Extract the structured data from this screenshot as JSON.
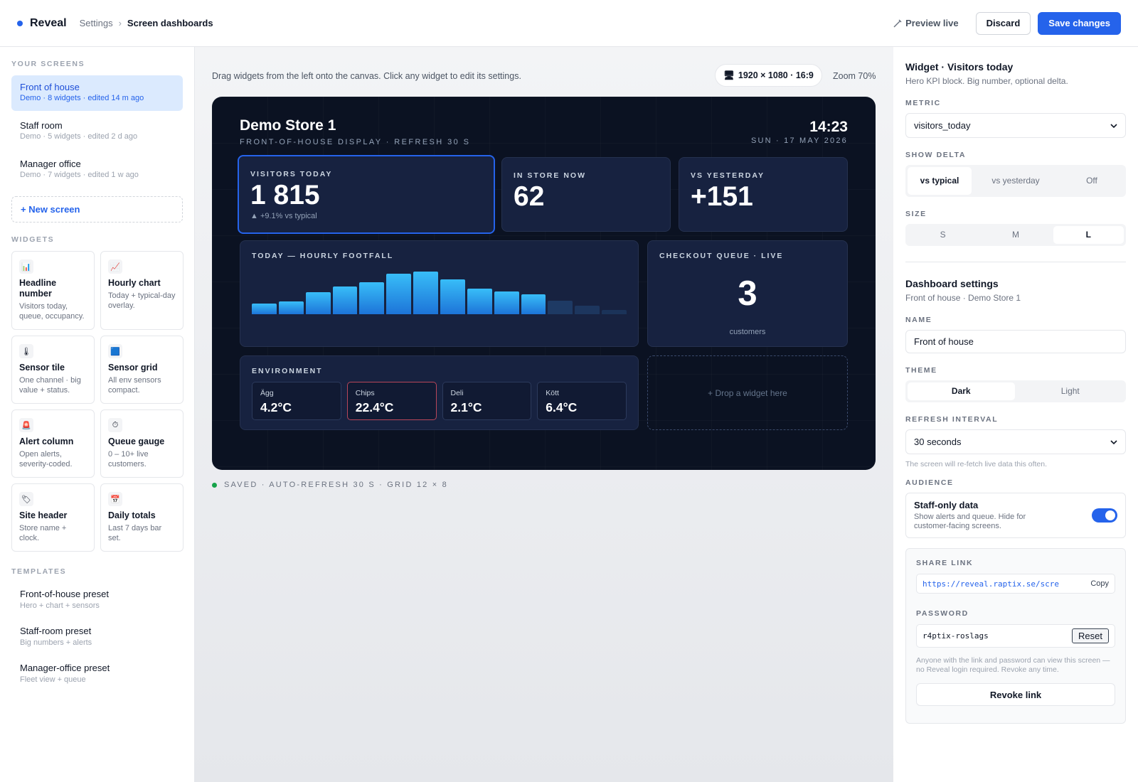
{
  "topbar": {
    "brand": "Reveal",
    "breadcrumb_parent": "Settings",
    "breadcrumb_sep": "›",
    "breadcrumb_current": "Screen dashboards",
    "preview_label": "Preview live",
    "discard_label": "Discard",
    "save_label": "Save changes"
  },
  "sidebar": {
    "screens_heading": "YOUR SCREENS",
    "screens": [
      {
        "name": "Front of house",
        "meta": "Demo · 8 widgets · edited 14 m ago",
        "active": true
      },
      {
        "name": "Staff room",
        "meta": "Demo · 5 widgets · edited 2 d ago",
        "active": false
      },
      {
        "name": "Manager office",
        "meta": "Demo · 7 widgets · edited 1 w ago",
        "active": false
      }
    ],
    "new_screen_label": "+ New screen",
    "widgets_heading": "WIDGETS",
    "widgets": [
      {
        "icon": "bar-chart-icon",
        "glyph": "📊",
        "name": "Headline number",
        "desc": "Visitors today, queue, occupancy."
      },
      {
        "icon": "line-chart-icon",
        "glyph": "📈",
        "name": "Hourly chart",
        "desc": "Today + typical-day overlay."
      },
      {
        "icon": "thermometer-icon",
        "glyph": "🌡",
        "name": "Sensor tile",
        "desc": "One channel · big value + status."
      },
      {
        "icon": "grid-icon",
        "glyph": "🟦",
        "name": "Sensor grid",
        "desc": "All env sensors compact."
      },
      {
        "icon": "siren-icon",
        "glyph": "🚨",
        "name": "Alert column",
        "desc": "Open alerts, severity-coded."
      },
      {
        "icon": "timer-icon",
        "glyph": "⏱",
        "name": "Queue gauge",
        "desc": "0 – 10+ live customers."
      },
      {
        "icon": "label-icon",
        "glyph": "🏷",
        "name": "Site header",
        "desc": "Store name + clock."
      },
      {
        "icon": "calendar-icon",
        "glyph": "📅",
        "name": "Daily totals",
        "desc": "Last 7 days bar set."
      }
    ],
    "templates_heading": "TEMPLATES",
    "templates": [
      {
        "name": "Front-of-house preset",
        "desc": "Hero + chart + sensors"
      },
      {
        "name": "Staff-room preset",
        "desc": "Big numbers + alerts"
      },
      {
        "name": "Manager-office preset",
        "desc": "Fleet view + queue"
      }
    ]
  },
  "canvas": {
    "hint": "Drag widgets from the left onto the canvas. Click any widget to edit its settings.",
    "resolution": "1920 × 1080 · 16:9",
    "zoom": "Zoom 70%",
    "status": "SAVED · AUTO-REFRESH 30 S · GRID 12 × 8",
    "drop_hint": "+ Drop a widget here"
  },
  "screen": {
    "title": "Demo Store 1",
    "subtitle": "FRONT-OF-HOUSE DISPLAY · REFRESH 30 S",
    "time": "14:23",
    "date": "SUN · 17 MAY 2026",
    "kpis": [
      {
        "label": "VISITORS TODAY",
        "value": "1 815",
        "delta": "▲ +9.1% vs typical"
      },
      {
        "label": "IN STORE NOW",
        "value": "62",
        "delta": ""
      },
      {
        "label": "VS YESTERDAY",
        "value": "+151",
        "delta": ""
      }
    ],
    "chart_label": "TODAY — HOURLY FOOTFALL",
    "queue_label": "CHECKOUT QUEUE · LIVE",
    "queue_value": "3",
    "queue_unit": "customers",
    "env_label": "ENVIRONMENT",
    "env": [
      {
        "name": "Ägg",
        "value": "4.2°C",
        "alert": false
      },
      {
        "name": "Chips",
        "value": "22.4°C",
        "alert": true
      },
      {
        "name": "Deli",
        "value": "2.1°C",
        "alert": false
      },
      {
        "name": "Kött",
        "value": "6.4°C",
        "alert": false
      }
    ]
  },
  "chart_data": {
    "type": "bar",
    "values": [
      25,
      29,
      50,
      63,
      73,
      92,
      97,
      79,
      58,
      52,
      46,
      31,
      19,
      10
    ],
    "future_from_index": 11,
    "colors": {
      "bar": "#38bdf8",
      "future": "#1e3a64"
    }
  },
  "settings": {
    "widget_title": "Widget · Visitors today",
    "widget_sub": "Hero KPI block. Big number, optional delta.",
    "metric_label": "METRIC",
    "metric_value": "visitors_today",
    "delta_label": "SHOW DELTA",
    "delta_options": [
      "vs typical",
      "vs yesterday",
      "Off"
    ],
    "size_label": "SIZE",
    "size_options": [
      "S",
      "M",
      "L"
    ],
    "dash_title": "Dashboard settings",
    "dash_sub": "Front of house · Demo Store 1",
    "name_label": "NAME",
    "name_value": "Front of house",
    "theme_label": "THEME",
    "theme_options": [
      "Dark",
      "Light"
    ],
    "refresh_label": "REFRESH INTERVAL",
    "refresh_value": "30 seconds",
    "refresh_help": "The screen will re-fetch live data this often.",
    "audience_label": "AUDIENCE",
    "staff_title": "Staff-only data",
    "staff_desc": "Show alerts and queue. Hide for customer-facing screens.",
    "share_label": "SHARE LINK",
    "share_url": "https://reveal.raptix.se/scre",
    "copy_label": "Copy",
    "password_label": "PASSWORD",
    "password_value": "r4ptix-roslags",
    "reset_label": "Reset",
    "share_help": "Anyone with the link and password can view this screen — no Reveal login required. Revoke any time.",
    "revoke_label": "Revoke link"
  }
}
